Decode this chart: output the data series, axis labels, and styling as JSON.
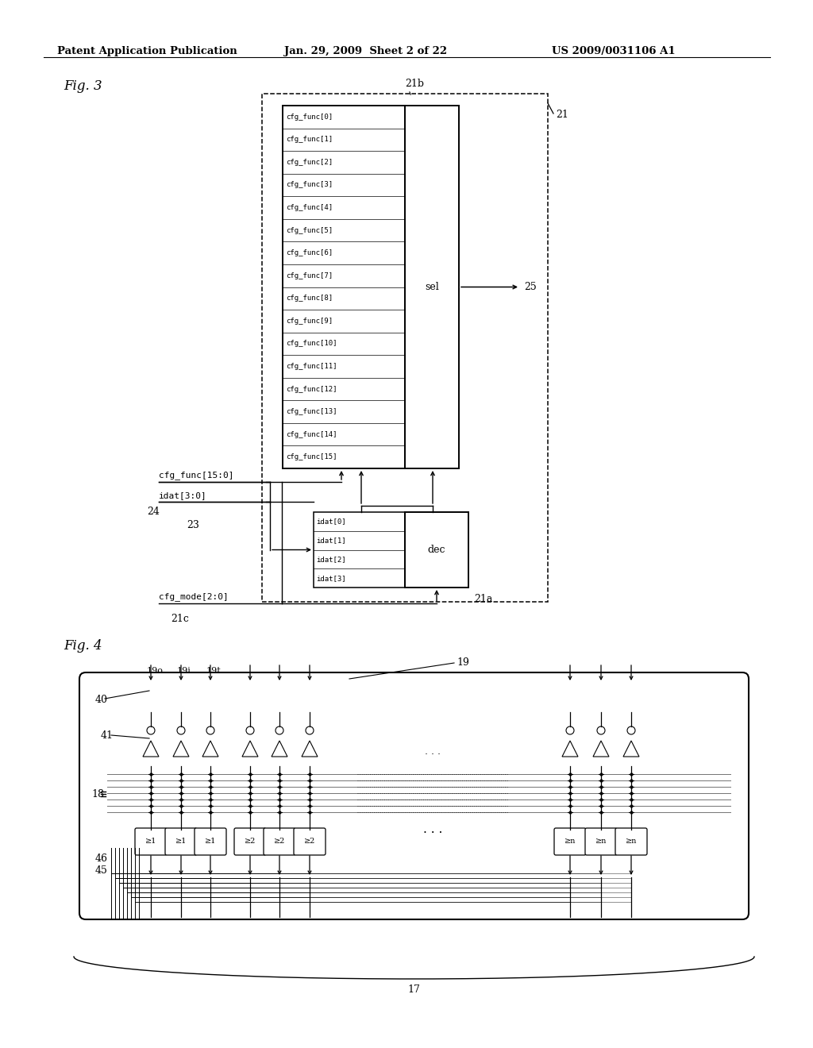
{
  "bg_color": "#ffffff",
  "header_left": "Patent Application Publication",
  "header_mid": "Jan. 29, 2009  Sheet 2 of 22",
  "header_right": "US 2009/0031106 A1",
  "fig3_label": "Fig. 3",
  "fig4_label": "Fig. 4",
  "cfg_func_labels": [
    "cfg_func[0]",
    "cfg_func[1]",
    "cfg_func[2]",
    "cfg_func[3]",
    "cfg_func[4]",
    "cfg_func[5]",
    "cfg_func[6]",
    "cfg_func[7]",
    "cfg_func[8]",
    "cfg_func[9]",
    "cfg_func[10]",
    "cfg_func[11]",
    "cfg_func[12]",
    "cfg_func[13]",
    "cfg_func[14]",
    "cfg_func[15]"
  ],
  "idat_labels": [
    "idat[0]",
    "idat[1]",
    "idat[2]",
    "idat[3]"
  ],
  "label_21": "21",
  "label_21a": "21a",
  "label_21b": "21b",
  "label_21c": "21c",
  "label_23": "23",
  "label_24": "24",
  "label_25": "25",
  "label_sel": "sel",
  "label_dec": "dec",
  "label_cfg_func_bus": "cfg_func[15:0]",
  "label_idat_bus": "idat[3:0]",
  "label_cfg_mode": "cfg_mode[2:0]",
  "label_17": "17",
  "label_18": "18",
  "label_19": "19",
  "label_19o": "19o",
  "label_19i": "19i",
  "label_19t": "19t",
  "label_40": "40",
  "label_41": "41",
  "label_45": "45",
  "label_46": "46",
  "thresh_labels": [
    "≥1",
    "≥1",
    "≥1",
    "≥2",
    "≥2",
    "≥2",
    "≥n",
    "≥n",
    "≥n"
  ]
}
